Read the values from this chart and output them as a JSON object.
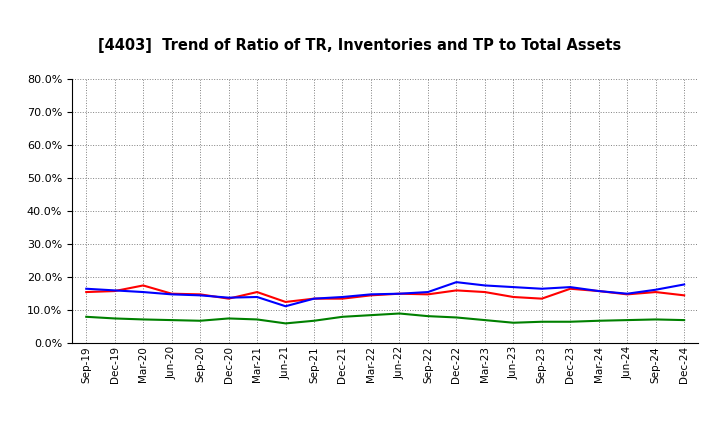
{
  "title": "[4403]  Trend of Ratio of TR, Inventories and TP to Total Assets",
  "labels": [
    "Sep-19",
    "Dec-19",
    "Mar-20",
    "Jun-20",
    "Sep-20",
    "Dec-20",
    "Mar-21",
    "Jun-21",
    "Sep-21",
    "Dec-21",
    "Mar-22",
    "Jun-22",
    "Sep-22",
    "Dec-22",
    "Mar-23",
    "Jun-23",
    "Sep-23",
    "Dec-23",
    "Mar-24",
    "Jun-24",
    "Sep-24",
    "Dec-24"
  ],
  "trade_receivables": [
    0.155,
    0.158,
    0.175,
    0.15,
    0.148,
    0.135,
    0.155,
    0.125,
    0.135,
    0.135,
    0.145,
    0.15,
    0.148,
    0.16,
    0.155,
    0.14,
    0.135,
    0.165,
    0.158,
    0.148,
    0.155,
    0.145
  ],
  "inventories": [
    0.165,
    0.16,
    0.155,
    0.148,
    0.145,
    0.138,
    0.14,
    0.112,
    0.135,
    0.14,
    0.148,
    0.15,
    0.155,
    0.185,
    0.175,
    0.17,
    0.165,
    0.17,
    0.158,
    0.15,
    0.162,
    0.178
  ],
  "trade_payables": [
    0.08,
    0.075,
    0.072,
    0.07,
    0.068,
    0.075,
    0.072,
    0.06,
    0.068,
    0.08,
    0.085,
    0.09,
    0.082,
    0.078,
    0.07,
    0.062,
    0.065,
    0.065,
    0.068,
    0.07,
    0.072,
    0.07
  ],
  "tr_color": "#ff0000",
  "inv_color": "#0000ff",
  "tp_color": "#008000",
  "bg_color": "#ffffff",
  "ylim": [
    0.0,
    0.8
  ],
  "yticks": [
    0.0,
    0.1,
    0.2,
    0.3,
    0.4,
    0.5,
    0.6,
    0.7,
    0.8
  ]
}
